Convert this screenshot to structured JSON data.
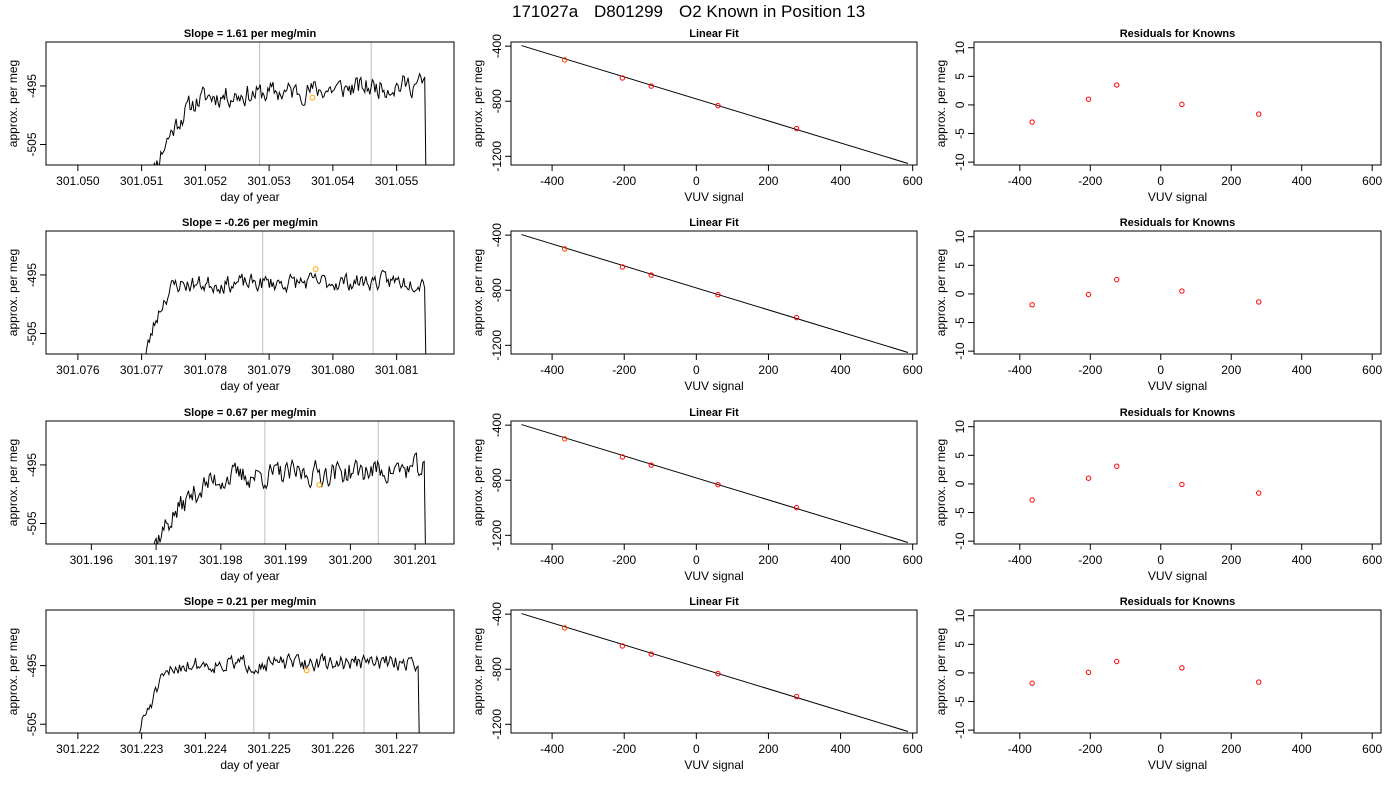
{
  "header": {
    "run_id": "171027a",
    "cylinder": "D801299",
    "description": "O2 Known in Position  13"
  },
  "colors": {
    "trace": "#000000",
    "marker_orange": "#FFA500",
    "marker_red": "#FF0000",
    "guide_line": "#BEBEBE"
  },
  "chart_data": [
    {
      "type": "line",
      "row": 1,
      "panel": "time-series",
      "title": "Slope =  1.61  per meg/min",
      "xlabel": "day of year",
      "ylabel": "approx. per meg",
      "xlim": [
        301.0495,
        301.0559
      ],
      "ylim": [
        -508.5,
        -487.5
      ],
      "x_ticks": [
        "301.050",
        "301.051",
        "301.052",
        "301.053",
        "301.054",
        "301.055"
      ],
      "x_tick_values": [
        301.05,
        301.051,
        301.052,
        301.053,
        301.054,
        301.055
      ],
      "y_ticks": [
        "-505",
        "-495"
      ],
      "y_tick_values": [
        -505,
        -495
      ],
      "x_start": 301.0511,
      "x_end": 301.0555,
      "guide_lines_x": [
        301.05285,
        301.0546
      ],
      "highlight_point": {
        "x": 301.05368,
        "y": -497.0
      },
      "trace_profile": {
        "baseline": -496.8,
        "rise_from": -512,
        "rise_end_x": 301.0521,
        "noise": 1.6,
        "trend": 2.2,
        "seed": 11,
        "drop_to": -510
      }
    },
    {
      "type": "scatter",
      "row": 1,
      "panel": "linear-fit",
      "title": "Linear Fit",
      "xlabel": "VUV signal",
      "ylabel": "approx. per meg",
      "xlim": [
        -514,
        612
      ],
      "ylim": [
        -1263,
        -370
      ],
      "x_ticks": [
        "-400",
        "-200",
        "0",
        "200",
        "400",
        "600"
      ],
      "x_tick_values": [
        -400,
        -200,
        0,
        200,
        400,
        600
      ],
      "y_ticks": [
        "-400",
        "-800",
        "-1200"
      ],
      "y_tick_values": [
        -400,
        -800,
        -1200
      ],
      "points": [
        {
          "x": -365,
          "y": -500
        },
        {
          "x": -205,
          "y": -631
        },
        {
          "x": -125,
          "y": -690
        },
        {
          "x": 60,
          "y": -832
        },
        {
          "x": 278,
          "y": -999
        }
      ],
      "highlight_index": 0,
      "fit_line": {
        "x": [
          -485,
          587
        ],
        "y": [
          -396,
          -1252
        ]
      }
    },
    {
      "type": "scatter",
      "row": 1,
      "panel": "residuals",
      "title": "Residuals for Knowns",
      "xlabel": "VUV signal",
      "ylabel": "approx. per meg",
      "xlim": [
        -530,
        625
      ],
      "ylim": [
        -10.5,
        11.0
      ],
      "x_ticks": [
        "-400",
        "-200",
        "0",
        "200",
        "400",
        "600"
      ],
      "x_tick_values": [
        -400,
        -200,
        0,
        200,
        400,
        600
      ],
      "y_ticks": [
        "-10",
        "-5",
        "0",
        "5",
        "10"
      ],
      "y_tick_values": [
        -10,
        -5,
        0,
        5,
        10
      ],
      "points": [
        {
          "x": -365,
          "y": -3.0
        },
        {
          "x": -205,
          "y": 1.0
        },
        {
          "x": -125,
          "y": 3.5
        },
        {
          "x": 60,
          "y": 0.1
        },
        {
          "x": 278,
          "y": -1.6
        }
      ]
    },
    {
      "type": "line",
      "row": 2,
      "panel": "time-series",
      "title": "Slope =  -0.26  per meg/min",
      "xlabel": "day of year",
      "ylabel": "approx. per meg",
      "xlim": [
        301.0755,
        301.0819
      ],
      "ylim": [
        -508.5,
        -487.5
      ],
      "x_ticks": [
        "301.076",
        "301.077",
        "301.078",
        "301.079",
        "301.080",
        "301.081"
      ],
      "x_tick_values": [
        301.076,
        301.077,
        301.078,
        301.079,
        301.08,
        301.081
      ],
      "y_ticks": [
        "-505",
        "-495"
      ],
      "y_tick_values": [
        -505,
        -495
      ],
      "x_start": 301.077,
      "x_end": 301.0815,
      "guide_lines_x": [
        301.0789,
        301.08063
      ],
      "highlight_point": {
        "x": 301.07973,
        "y": -494.0
      },
      "trace_profile": {
        "baseline": -496.6,
        "rise_from": -512,
        "rise_end_x": 301.0776,
        "noise": 1.3,
        "trend": 0.6,
        "seed": 23,
        "drop_to": -510
      }
    },
    {
      "type": "scatter",
      "row": 2,
      "panel": "linear-fit",
      "title": "Linear Fit",
      "xlabel": "VUV signal",
      "ylabel": "approx. per meg",
      "xlim": [
        -514,
        612
      ],
      "ylim": [
        -1263,
        -370
      ],
      "x_ticks": [
        "-400",
        "-200",
        "0",
        "200",
        "400",
        "600"
      ],
      "x_tick_values": [
        -400,
        -200,
        0,
        200,
        400,
        600
      ],
      "y_ticks": [
        "-400",
        "-800",
        "-1200"
      ],
      "y_tick_values": [
        -400,
        -800,
        -1200
      ],
      "points": [
        {
          "x": -365,
          "y": -500
        },
        {
          "x": -205,
          "y": -631
        },
        {
          "x": -125,
          "y": -690
        },
        {
          "x": 60,
          "y": -832
        },
        {
          "x": 278,
          "y": -999
        }
      ],
      "highlight_index": 0,
      "fit_line": {
        "x": [
          -485,
          587
        ],
        "y": [
          -396,
          -1252
        ]
      }
    },
    {
      "type": "scatter",
      "row": 2,
      "panel": "residuals",
      "title": "Residuals for Knowns",
      "xlabel": "VUV signal",
      "ylabel": "approx. per meg",
      "xlim": [
        -530,
        625
      ],
      "ylim": [
        -10.5,
        11.0
      ],
      "x_ticks": [
        "-400",
        "-200",
        "0",
        "200",
        "400",
        "600"
      ],
      "x_tick_values": [
        -400,
        -200,
        0,
        200,
        400,
        600
      ],
      "y_ticks": [
        "-10",
        "-5",
        "0",
        "5",
        "10"
      ],
      "y_tick_values": [
        -10,
        -5,
        0,
        5,
        10
      ],
      "points": [
        {
          "x": -365,
          "y": -1.9
        },
        {
          "x": -205,
          "y": -0.1
        },
        {
          "x": -125,
          "y": 2.5
        },
        {
          "x": 60,
          "y": 0.5
        },
        {
          "x": 278,
          "y": -1.4
        }
      ]
    },
    {
      "type": "line",
      "row": 3,
      "panel": "time-series",
      "title": "Slope =  0.67  per meg/min",
      "xlabel": "day of year",
      "ylabel": "approx. per meg",
      "xlim": [
        301.1953,
        301.2016
      ],
      "ylim": [
        -508.5,
        -487.5
      ],
      "x_ticks": [
        "301.196",
        "301.197",
        "301.198",
        "301.199",
        "301.200",
        "301.201"
      ],
      "x_tick_values": [
        301.196,
        301.197,
        301.198,
        301.199,
        301.2,
        301.201
      ],
      "y_ticks": [
        "-505",
        "-495"
      ],
      "y_tick_values": [
        -505,
        -495
      ],
      "x_start": 301.1968,
      "x_end": 301.2012,
      "guide_lines_x": [
        301.19868,
        301.20043
      ],
      "highlight_point": {
        "x": 301.19952,
        "y": -498.4
      },
      "trace_profile": {
        "baseline": -497.0,
        "rise_from": -512,
        "rise_end_x": 301.1982,
        "noise": 1.8,
        "trend": 1.4,
        "seed": 37,
        "drop_to": -510
      }
    },
    {
      "type": "scatter",
      "row": 3,
      "panel": "linear-fit",
      "title": "Linear Fit",
      "xlabel": "VUV signal",
      "ylabel": "approx. per meg",
      "xlim": [
        -514,
        612
      ],
      "ylim": [
        -1263,
        -370
      ],
      "x_ticks": [
        "-400",
        "-200",
        "0",
        "200",
        "400",
        "600"
      ],
      "x_tick_values": [
        -400,
        -200,
        0,
        200,
        400,
        600
      ],
      "y_ticks": [
        "-400",
        "-800",
        "-1200"
      ],
      "y_tick_values": [
        -400,
        -800,
        -1200
      ],
      "points": [
        {
          "x": -365,
          "y": -500
        },
        {
          "x": -205,
          "y": -631
        },
        {
          "x": -125,
          "y": -690
        },
        {
          "x": 60,
          "y": -832
        },
        {
          "x": 278,
          "y": -999
        }
      ],
      "highlight_index": 0,
      "fit_line": {
        "x": [
          -485,
          587
        ],
        "y": [
          -396,
          -1252
        ]
      }
    },
    {
      "type": "scatter",
      "row": 3,
      "panel": "residuals",
      "title": "Residuals for Knowns",
      "xlabel": "VUV signal",
      "ylabel": "approx. per meg",
      "xlim": [
        -530,
        625
      ],
      "ylim": [
        -10.5,
        11.0
      ],
      "x_ticks": [
        "-400",
        "-200",
        "0",
        "200",
        "400",
        "600"
      ],
      "x_tick_values": [
        -400,
        -200,
        0,
        200,
        400,
        600
      ],
      "y_ticks": [
        "-10",
        "-5",
        "0",
        "5",
        "10"
      ],
      "y_tick_values": [
        -10,
        -5,
        0,
        5,
        10
      ],
      "points": [
        {
          "x": -365,
          "y": -2.8
        },
        {
          "x": -205,
          "y": 1.0
        },
        {
          "x": -125,
          "y": 3.1
        },
        {
          "x": 60,
          "y": -0.1
        },
        {
          "x": 278,
          "y": -1.6
        }
      ]
    },
    {
      "type": "line",
      "row": 4,
      "panel": "time-series",
      "title": "Slope =  0.21  per meg/min",
      "xlabel": "day of year",
      "ylabel": "approx. per meg",
      "xlim": [
        301.2215,
        301.2279
      ],
      "ylim": [
        -506.5,
        -485.5
      ],
      "x_ticks": [
        "301.222",
        "301.223",
        "301.224",
        "301.225",
        "301.226",
        "301.227"
      ],
      "x_tick_values": [
        301.222,
        301.223,
        301.224,
        301.225,
        301.226,
        301.227
      ],
      "y_ticks": [
        "-505",
        "-495"
      ],
      "y_tick_values": [
        -505,
        -495
      ],
      "x_start": 301.2228,
      "x_end": 301.2274,
      "guide_lines_x": [
        301.22476,
        301.22649
      ],
      "highlight_point": {
        "x": 301.22559,
        "y": -495.8
      },
      "trace_profile": {
        "baseline": -494.8,
        "rise_from": -512,
        "rise_end_x": 301.2237,
        "noise": 1.2,
        "trend": 0.4,
        "seed": 51,
        "drop_to": -510
      }
    },
    {
      "type": "scatter",
      "row": 4,
      "panel": "linear-fit",
      "title": "Linear Fit",
      "xlabel": "VUV signal",
      "ylabel": "approx. per meg",
      "xlim": [
        -514,
        612
      ],
      "ylim": [
        -1263,
        -370
      ],
      "x_ticks": [
        "-400",
        "-200",
        "0",
        "200",
        "400",
        "600"
      ],
      "x_tick_values": [
        -400,
        -200,
        0,
        200,
        400,
        600
      ],
      "y_ticks": [
        "-400",
        "-800",
        "-1200"
      ],
      "y_tick_values": [
        -400,
        -800,
        -1200
      ],
      "points": [
        {
          "x": -365,
          "y": -500
        },
        {
          "x": -205,
          "y": -631
        },
        {
          "x": -125,
          "y": -690
        },
        {
          "x": 60,
          "y": -832
        },
        {
          "x": 278,
          "y": -999
        }
      ],
      "highlight_index": 0,
      "fit_line": {
        "x": [
          -485,
          587
        ],
        "y": [
          -396,
          -1252
        ]
      }
    },
    {
      "type": "scatter",
      "row": 4,
      "panel": "residuals",
      "title": "Residuals for Knowns",
      "xlabel": "VUV signal",
      "ylabel": "approx. per meg",
      "xlim": [
        -530,
        625
      ],
      "ylim": [
        -10.5,
        11.0
      ],
      "x_ticks": [
        "-400",
        "-200",
        "0",
        "200",
        "400",
        "600"
      ],
      "x_tick_values": [
        -400,
        -200,
        0,
        200,
        400,
        600
      ],
      "y_ticks": [
        "-10",
        "-5",
        "0",
        "5",
        "10"
      ],
      "y_tick_values": [
        -10,
        -5,
        0,
        5,
        10
      ],
      "points": [
        {
          "x": -365,
          "y": -1.8
        },
        {
          "x": -205,
          "y": 0.1
        },
        {
          "x": -125,
          "y": 2.0
        },
        {
          "x": 60,
          "y": 0.9
        },
        {
          "x": 278,
          "y": -1.6
        }
      ]
    }
  ]
}
